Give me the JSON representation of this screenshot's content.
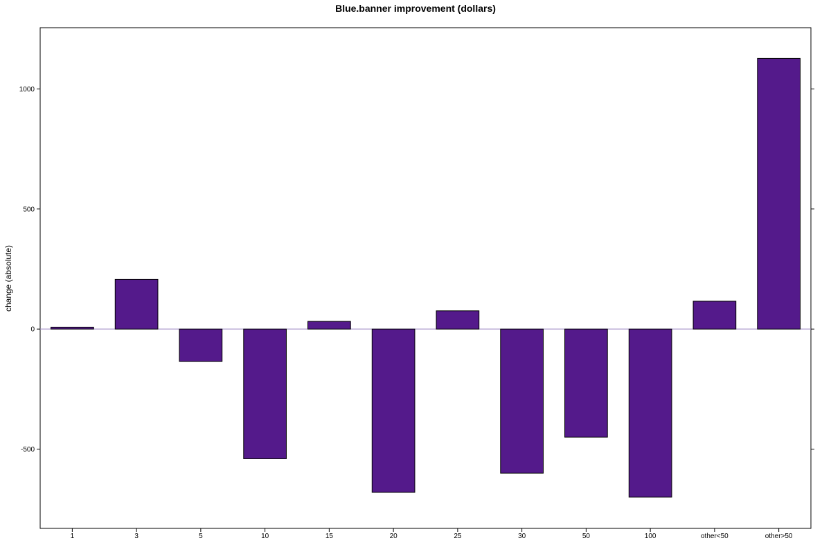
{
  "chart_data": {
    "type": "bar",
    "title": "Blue.banner improvement (dollars)",
    "xlabel": "",
    "ylabel": "change (absolute)",
    "categories": [
      "1",
      "3",
      "5",
      "10",
      "15",
      "20",
      "25",
      "30",
      "50",
      "100",
      "other<50",
      "other>50"
    ],
    "values": [
      8,
      207,
      -135,
      -540,
      32,
      -680,
      76,
      -600,
      -450,
      -700,
      116,
      1127
    ],
    "ylim": [
      -830,
      1255
    ],
    "yticks": [
      -500,
      0,
      500,
      1000
    ],
    "ytick_labels": [
      "-500",
      "0",
      "500",
      "1000"
    ],
    "bar_color": "#541a8b",
    "zero_line_color": "#9a85c2",
    "grid": false,
    "legend": "none"
  }
}
